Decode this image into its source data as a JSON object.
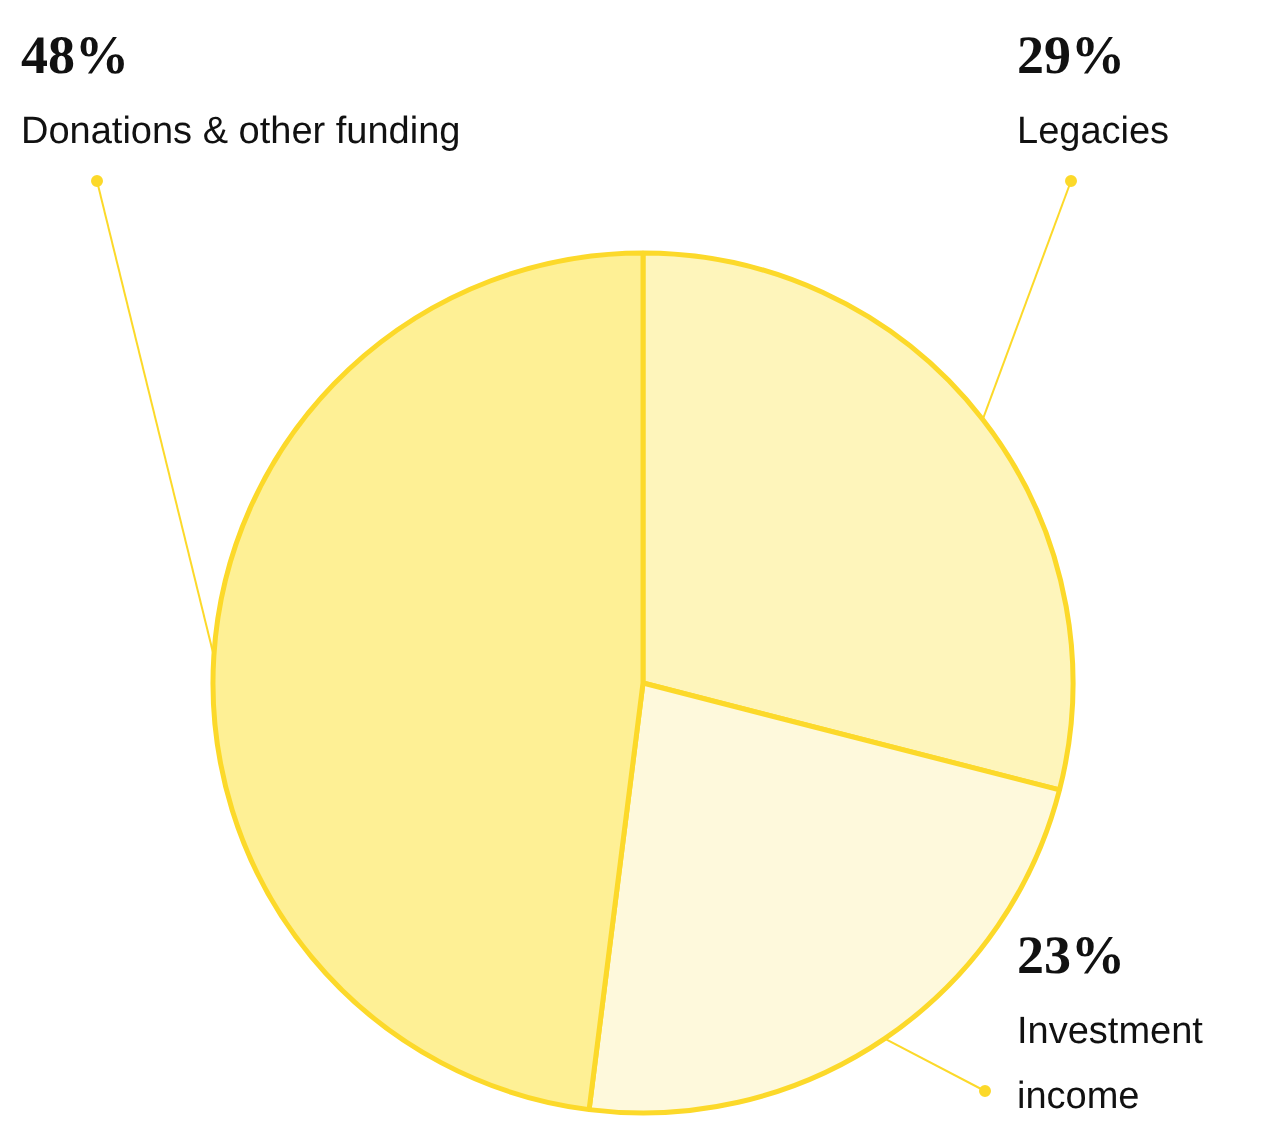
{
  "chart_data": {
    "type": "pie",
    "categories": [
      "Legacies",
      "Investment income",
      "Donations & other funding"
    ],
    "values": [
      29,
      23,
      48
    ],
    "colors": [
      "#fef5bb",
      "#fef9dc",
      "#fef095"
    ],
    "value_labels": [
      "29%",
      "23%",
      "48%"
    ]
  }
}
